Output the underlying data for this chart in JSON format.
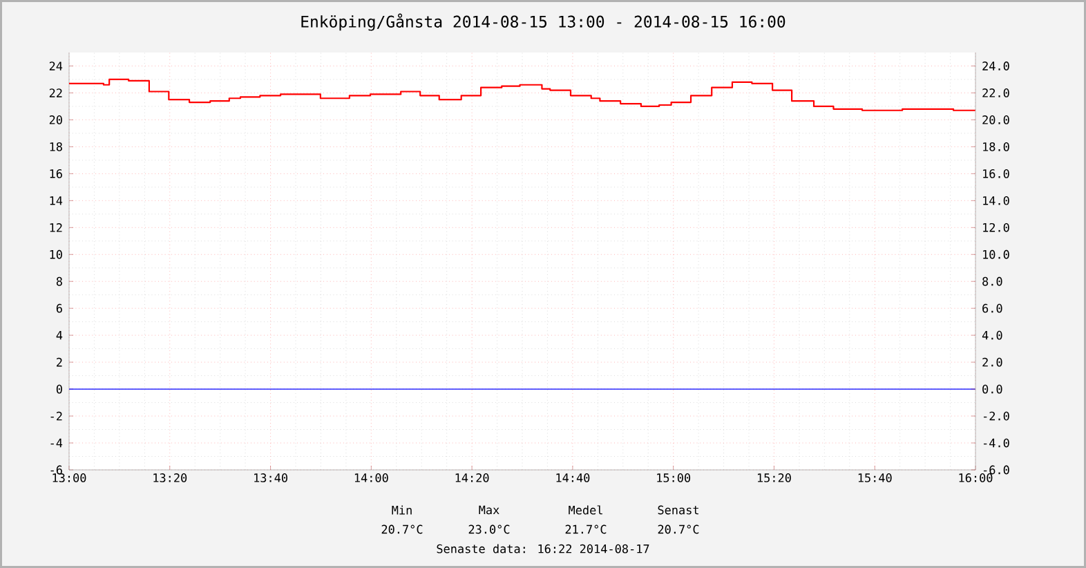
{
  "chart_data": {
    "type": "step",
    "title": "Enköping/Gånsta 2014-08-15 13:00 - 2014-08-15 16:00",
    "x": [
      13.0,
      13.114,
      13.133,
      13.197,
      13.265,
      13.33,
      13.398,
      13.467,
      13.53,
      13.567,
      13.632,
      13.7,
      13.832,
      13.928,
      13.997,
      14.098,
      14.162,
      14.225,
      14.298,
      14.363,
      14.432,
      14.492,
      14.565,
      14.592,
      14.66,
      14.728,
      14.757,
      14.825,
      14.893,
      14.953,
      14.993,
      15.058,
      15.127,
      15.195,
      15.26,
      15.328,
      15.392,
      15.465,
      15.53,
      15.625,
      15.758,
      15.927,
      16.0
    ],
    "series": [
      {
        "color": "#ff0000",
        "values": [
          22.7,
          22.6,
          23.0,
          22.9,
          22.1,
          21.5,
          21.3,
          21.4,
          21.6,
          21.7,
          21.8,
          21.9,
          21.6,
          21.8,
          21.9,
          22.1,
          21.8,
          21.5,
          21.8,
          22.4,
          22.5,
          22.6,
          22.3,
          22.2,
          21.8,
          21.6,
          21.4,
          21.2,
          21.0,
          21.1,
          21.3,
          21.8,
          22.4,
          22.8,
          22.7,
          22.2,
          21.4,
          21.0,
          20.8,
          20.7,
          20.8,
          20.7,
          20.7
        ]
      }
    ],
    "xlim": [
      13.0,
      16.0
    ],
    "xticks": [
      {
        "value": 13.0,
        "label": "13:00"
      },
      {
        "value": 13.3333,
        "label": "13:20"
      },
      {
        "value": 13.6667,
        "label": "13:40"
      },
      {
        "value": 14.0,
        "label": "14:00"
      },
      {
        "value": 14.3333,
        "label": "14:20"
      },
      {
        "value": 14.6667,
        "label": "14:40"
      },
      {
        "value": 15.0,
        "label": "15:00"
      },
      {
        "value": 15.3333,
        "label": "15:20"
      },
      {
        "value": 15.6667,
        "label": "15:40"
      },
      {
        "value": 16.0,
        "label": "16:00"
      },
      {
        "value": 13.0833,
        "label": null
      },
      {
        "value": 13.1667,
        "label": null
      },
      {
        "value": 13.25,
        "label": null
      },
      {
        "value": 13.4167,
        "label": null
      },
      {
        "value": 13.5,
        "label": null
      },
      {
        "value": 13.5833,
        "label": null
      },
      {
        "value": 13.75,
        "label": null
      },
      {
        "value": 13.8333,
        "label": null
      },
      {
        "value": 13.9167,
        "label": null
      },
      {
        "value": 14.0833,
        "label": null
      },
      {
        "value": 14.1667,
        "label": null
      },
      {
        "value": 14.25,
        "label": null
      },
      {
        "value": 14.4167,
        "label": null
      },
      {
        "value": 14.5,
        "label": null
      },
      {
        "value": 14.5833,
        "label": null
      },
      {
        "value": 14.75,
        "label": null
      },
      {
        "value": 14.8333,
        "label": null
      },
      {
        "value": 14.9167,
        "label": null
      },
      {
        "value": 15.0833,
        "label": null
      },
      {
        "value": 15.1667,
        "label": null
      },
      {
        "value": 15.25,
        "label": null
      },
      {
        "value": 15.4167,
        "label": null
      },
      {
        "value": 15.5,
        "label": null
      },
      {
        "value": 15.5833,
        "label": null
      },
      {
        "value": 15.75,
        "label": null
      },
      {
        "value": 15.8333,
        "label": null
      },
      {
        "value": 15.9167,
        "label": null
      }
    ],
    "ylim": [
      -6,
      25
    ],
    "yticks": [
      -6,
      -4,
      -2,
      0,
      2,
      4,
      6,
      8,
      10,
      12,
      14,
      16,
      18,
      20,
      22,
      24,
      {
        "value": -5,
        "label": null
      },
      {
        "value": -3,
        "label": null
      },
      {
        "value": -1,
        "label": null
      },
      {
        "value": 1,
        "label": null
      },
      {
        "value": 3,
        "label": null
      },
      {
        "value": 5,
        "label": null
      },
      {
        "value": 7,
        "label": null
      },
      {
        "value": 9,
        "label": null
      },
      {
        "value": 11,
        "label": null
      },
      {
        "value": 13,
        "label": null
      },
      {
        "value": 15,
        "label": null
      },
      {
        "value": 17,
        "label": null
      },
      {
        "value": 19,
        "label": null
      },
      {
        "value": 21,
        "label": null
      },
      {
        "value": 23,
        "label": null
      }
    ],
    "y2lim": [
      -6,
      25
    ],
    "y2ticks": [
      {
        "value": -6,
        "label": "-6.0"
      },
      {
        "value": -4,
        "label": "-4.0"
      },
      {
        "value": -2,
        "label": "-2.0"
      },
      {
        "value": 0,
        "label": "0.0"
      },
      {
        "value": 2,
        "label": "2.0"
      },
      {
        "value": 4,
        "label": "4.0"
      },
      {
        "value": 6,
        "label": "6.0"
      },
      {
        "value": 8,
        "label": "8.0"
      },
      {
        "value": 10,
        "label": "10.0"
      },
      {
        "value": 12,
        "label": "12.0"
      },
      {
        "value": 14,
        "label": "14.0"
      },
      {
        "value": 16,
        "label": "16.0"
      },
      {
        "value": 18,
        "label": "18.0"
      },
      {
        "value": 20,
        "label": "20.0"
      },
      {
        "value": 22,
        "label": "22.0"
      },
      {
        "value": 24,
        "label": "24.0"
      }
    ],
    "ref_lines": [
      {
        "axis": "y",
        "value": 0,
        "color": "#0000ff"
      }
    ],
    "grid": true,
    "marker": "none",
    "line_style": "solid",
    "annotations": [
      "Min",
      "Max",
      "Medel",
      "Senast",
      "20.7°C",
      "23.0°C",
      "21.7°C",
      "20.7°C",
      "Senaste data: 16:22 2014-08-17"
    ]
  }
}
